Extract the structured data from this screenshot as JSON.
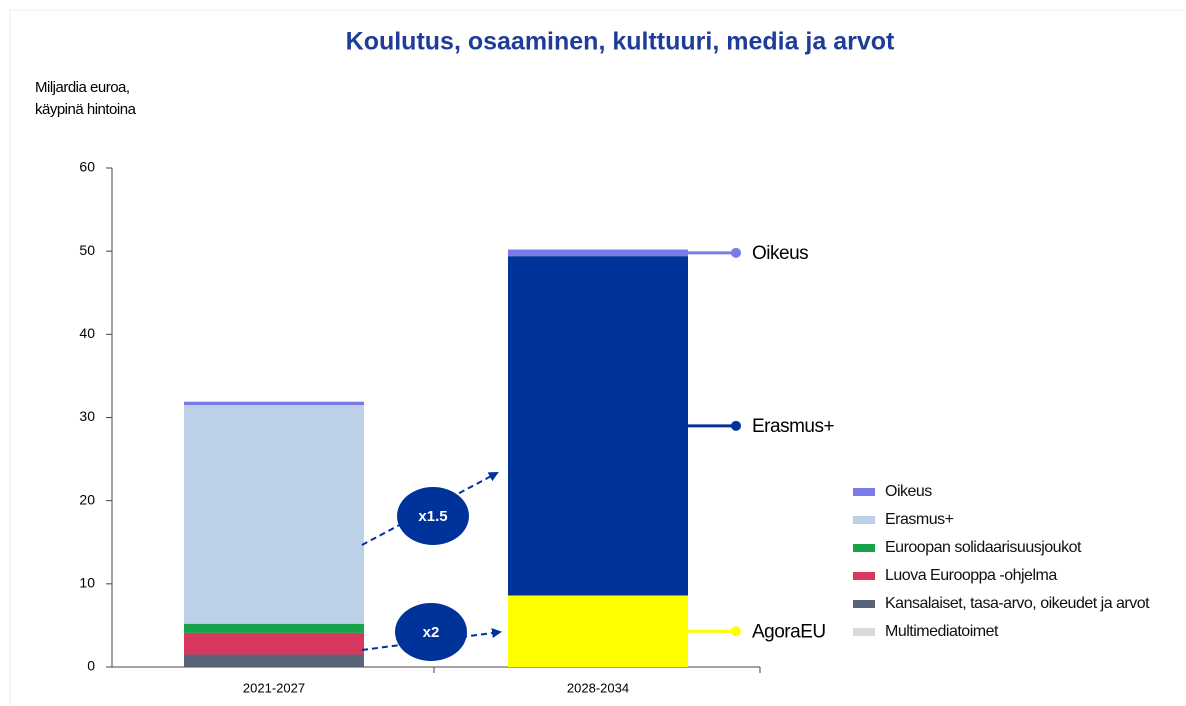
{
  "chart_data": {
    "type": "stacked_bar",
    "title": "Koulutus, osaaminen, kulttuuri, media ja arvot",
    "ylabel": [
      "Miljardia euroa,",
      "käypinä hintoina"
    ],
    "categories": [
      "2021-2027",
      "2028-2034"
    ],
    "series": [
      {
        "name": "Kansalaiset, tasa-arvo, oikeudet ja arvot",
        "color": "#5a6478",
        "values": [
          1.5,
          null
        ]
      },
      {
        "name": "Luova Eurooppa -ohjelma",
        "color": "#d9385e",
        "values": [
          2.6,
          null
        ]
      },
      {
        "name": "Euroopan solidaarisuusjoukot",
        "color": "#17a34a",
        "values": [
          1.1,
          null
        ]
      },
      {
        "name": "Erasmus+",
        "color": "#bcd0e8",
        "values": [
          26.3,
          null
        ]
      },
      {
        "name": "Oikeus",
        "color": "#7b7be8",
        "values": [
          0.4,
          0.8
        ]
      },
      {
        "name": "Multimediatoimet",
        "color": "#d9d9d9",
        "values": [
          0,
          null
        ]
      },
      {
        "name": "AgoraEU",
        "color": "#ffff00",
        "values": [
          null,
          8.6
        ]
      },
      {
        "name": "Erasmus+",
        "color": "#00339a",
        "values": [
          null,
          40.8
        ]
      }
    ],
    "stack_order": [
      0,
      1,
      2,
      3,
      6,
      7,
      4,
      5
    ],
    "legend_series": [
      4,
      3,
      2,
      1,
      0,
      5
    ],
    "callout_series": [
      4,
      7,
      6
    ],
    "annotations": [
      "x1.5",
      "x2"
    ],
    "ylim": [
      0,
      60
    ],
    "yticks": [
      0,
      10,
      20,
      30,
      40,
      50,
      60
    ]
  }
}
